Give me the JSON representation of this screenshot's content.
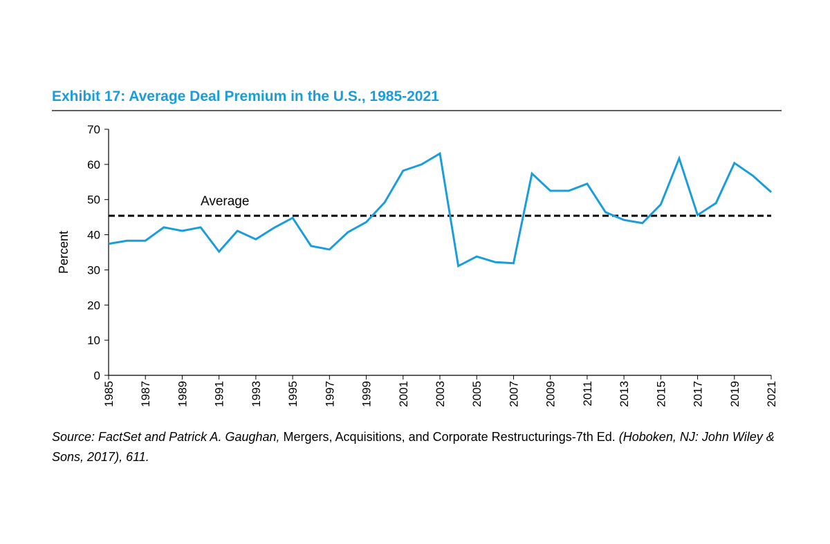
{
  "chart_data": {
    "type": "line",
    "title": "Exhibit 17: Average Deal Premium in the U.S., 1985-2021",
    "y_label": "Percent",
    "x": [
      1985,
      1986,
      1987,
      1988,
      1989,
      1990,
      1991,
      1992,
      1993,
      1994,
      1995,
      1996,
      1997,
      1998,
      1999,
      2000,
      2001,
      2002,
      2003,
      2004,
      2005,
      2006,
      2007,
      2008,
      2009,
      2010,
      2011,
      2012,
      2013,
      2014,
      2015,
      2016,
      2017,
      2018,
      2019,
      2020,
      2021
    ],
    "series": [
      {
        "name": "Average Deal Premium",
        "color": "#1a9ddb",
        "values": [
          37.4,
          38.3,
          38.3,
          42.1,
          41.1,
          42.1,
          35.2,
          41.1,
          38.7,
          42.0,
          44.8,
          36.8,
          35.8,
          40.7,
          43.6,
          49.2,
          58.2,
          60.0,
          63.1,
          31.1,
          33.8,
          32.2,
          31.9,
          57.4,
          52.5,
          52.5,
          54.5,
          46.4,
          44.2,
          43.3,
          48.6,
          61.7,
          45.6,
          49.0,
          60.4,
          56.8,
          52.1
        ]
      }
    ],
    "reference_line": {
      "value": 45.4,
      "label": "Average",
      "color": "#000000"
    },
    "xlim": [
      1985,
      2021
    ],
    "xticks": [
      1985,
      1987,
      1989,
      1991,
      1993,
      1995,
      1997,
      1999,
      2001,
      2003,
      2005,
      2007,
      2009,
      2011,
      2013,
      2015,
      2017,
      2019,
      2021
    ],
    "ylim": [
      0,
      70
    ],
    "yticks": [
      0,
      10,
      20,
      30,
      40,
      50,
      60,
      70
    ],
    "grid": false,
    "source": [
      "Source: FactSet and Patrick A. Gaughan,",
      "Mergers, Acquisitions, and Corporate Restructurings-7th Ed.",
      "(Hoboken, NJ: John Wiley & Sons, 2017), 611."
    ]
  }
}
